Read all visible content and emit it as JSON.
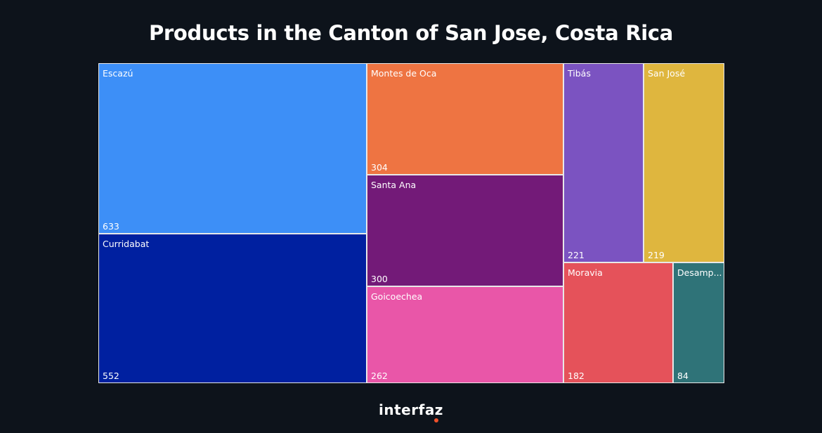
{
  "chart_data": {
    "type": "treemap",
    "title": "Products in the Canton of San Jose, Costa Rica",
    "items": [
      {
        "label": "Escazú",
        "value": 633,
        "color": "#3d8ff7"
      },
      {
        "label": "Curridabat",
        "value": 552,
        "color": "#0020a0"
      },
      {
        "label": "Montes de Oca",
        "value": 304,
        "color": "#ee7442"
      },
      {
        "label": "Santa Ana",
        "value": 300,
        "color": "#731a78"
      },
      {
        "label": "Goicoechea",
        "value": 262,
        "color": "#e956a8"
      },
      {
        "label": "Tibás",
        "value": 221,
        "color": "#7b53c1"
      },
      {
        "label": "San José",
        "value": 219,
        "color": "#dfb63e"
      },
      {
        "label": "Moravia",
        "value": 182,
        "color": "#e5525a"
      },
      {
        "label": "Desamp...",
        "value": 84,
        "color": "#2f7378"
      }
    ]
  },
  "branding": {
    "logo_text": "interfaz",
    "accent": "#f0512b"
  }
}
